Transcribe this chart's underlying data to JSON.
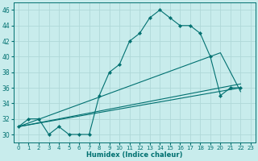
{
  "xlabel": "Humidex (Indice chaleur)",
  "bg_color": "#c8ecec",
  "grid_color": "#b0d8d8",
  "line_color": "#007070",
  "xlim": [
    -0.5,
    23.5
  ],
  "ylim": [
    29,
    47
  ],
  "yticks": [
    30,
    32,
    34,
    36,
    38,
    40,
    42,
    44,
    46
  ],
  "xticks": [
    0,
    1,
    2,
    3,
    4,
    5,
    6,
    7,
    8,
    9,
    10,
    11,
    12,
    13,
    14,
    15,
    16,
    17,
    18,
    19,
    20,
    21,
    22,
    23
  ],
  "series_main": {
    "x": [
      0,
      1,
      2,
      3,
      4,
      5,
      6,
      7,
      8,
      9,
      10,
      11,
      12,
      13,
      14,
      15,
      16,
      17,
      18,
      19,
      20,
      21,
      22
    ],
    "y": [
      31,
      32,
      32,
      30,
      31,
      30,
      30,
      30,
      35,
      38,
      39,
      42,
      43,
      45,
      46,
      45,
      44,
      44,
      43,
      40,
      35,
      36,
      36
    ]
  },
  "trend1": {
    "x": [
      0,
      22
    ],
    "y": [
      31,
      36
    ]
  },
  "trend2": {
    "x": [
      0,
      22
    ],
    "y": [
      31,
      36.5
    ]
  },
  "trend3": {
    "x": [
      0,
      20,
      22
    ],
    "y": [
      31,
      40.5,
      35.5
    ]
  }
}
